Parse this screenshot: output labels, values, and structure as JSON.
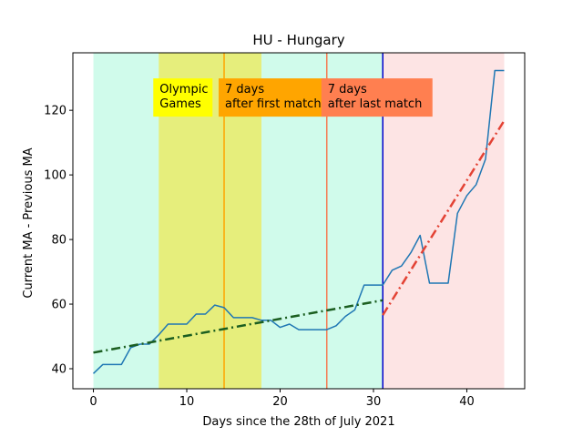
{
  "chart_data": {
    "type": "line",
    "title": "HU - Hungary",
    "xlabel": "Days since the 28th of July 2021",
    "ylabel": "Current MA - Previous MA",
    "xlim": [
      -2.2,
      46.2
    ],
    "ylim": [
      33.8,
      137.8
    ],
    "xticks": [
      0,
      10,
      20,
      30,
      40
    ],
    "yticks": [
      40,
      60,
      80,
      100,
      120
    ],
    "grid": false,
    "regions": [
      {
        "x0": 0,
        "x1": 31,
        "color": "#d0fbeb"
      },
      {
        "x0": 31,
        "x1": 44,
        "color": "#fde4e4"
      },
      {
        "x0": 7,
        "x1": 18,
        "color": "#e6ee7c"
      }
    ],
    "vlines": [
      {
        "x": 14,
        "color": "#ffa500"
      },
      {
        "x": 25,
        "color": "#f57a52"
      },
      {
        "x": 31,
        "color": "#0000cc"
      }
    ],
    "annotations": [
      {
        "x": 7,
        "y": 126.5,
        "lines": [
          "Olympic",
          "Games"
        ],
        "bg": "#ffff00"
      },
      {
        "x": 14,
        "y": 126.5,
        "lines": [
          "7 days",
          "after first match"
        ],
        "bg": "#ffa500"
      },
      {
        "x": 25,
        "y": 126.5,
        "lines": [
          "7 days",
          "after last match"
        ],
        "bg": "#ff7f50"
      }
    ],
    "series": [
      {
        "color": "#1f77b4",
        "style": "solid",
        "x": [
          0,
          1,
          2,
          3,
          4,
          5,
          6,
          7,
          8,
          9,
          10,
          11,
          12,
          13,
          14,
          15,
          16,
          17,
          18,
          19,
          20,
          21,
          22,
          23,
          24,
          25,
          26,
          27,
          28,
          29,
          30,
          31,
          32,
          33,
          34,
          35,
          36,
          37,
          38,
          39,
          40,
          41,
          42,
          43,
          44
        ],
        "y": [
          38.5,
          41.3,
          41.3,
          41.3,
          46.5,
          47.6,
          47.6,
          50.5,
          53.8,
          53.8,
          53.8,
          56.9,
          56.9,
          59.7,
          58.9,
          55.8,
          55.8,
          55.8,
          55,
          55,
          52.8,
          53.8,
          52.1,
          52.1,
          52.1,
          52.1,
          53.3,
          56.2,
          58.2,
          65.9,
          65.9,
          65.9,
          70.5,
          71.8,
          75.9,
          81.3,
          66.5,
          66.5,
          66.5,
          88.1,
          93.6,
          97,
          104.9,
          132.3,
          132.3
        ]
      },
      {
        "color": "#1b5e20",
        "style": "dashdot",
        "x": [
          0,
          31
        ],
        "y": [
          45,
          61.2
        ]
      },
      {
        "color": "#e34234",
        "style": "dashdot",
        "x": [
          31,
          44
        ],
        "y": [
          56.6,
          116.8
        ]
      }
    ]
  }
}
